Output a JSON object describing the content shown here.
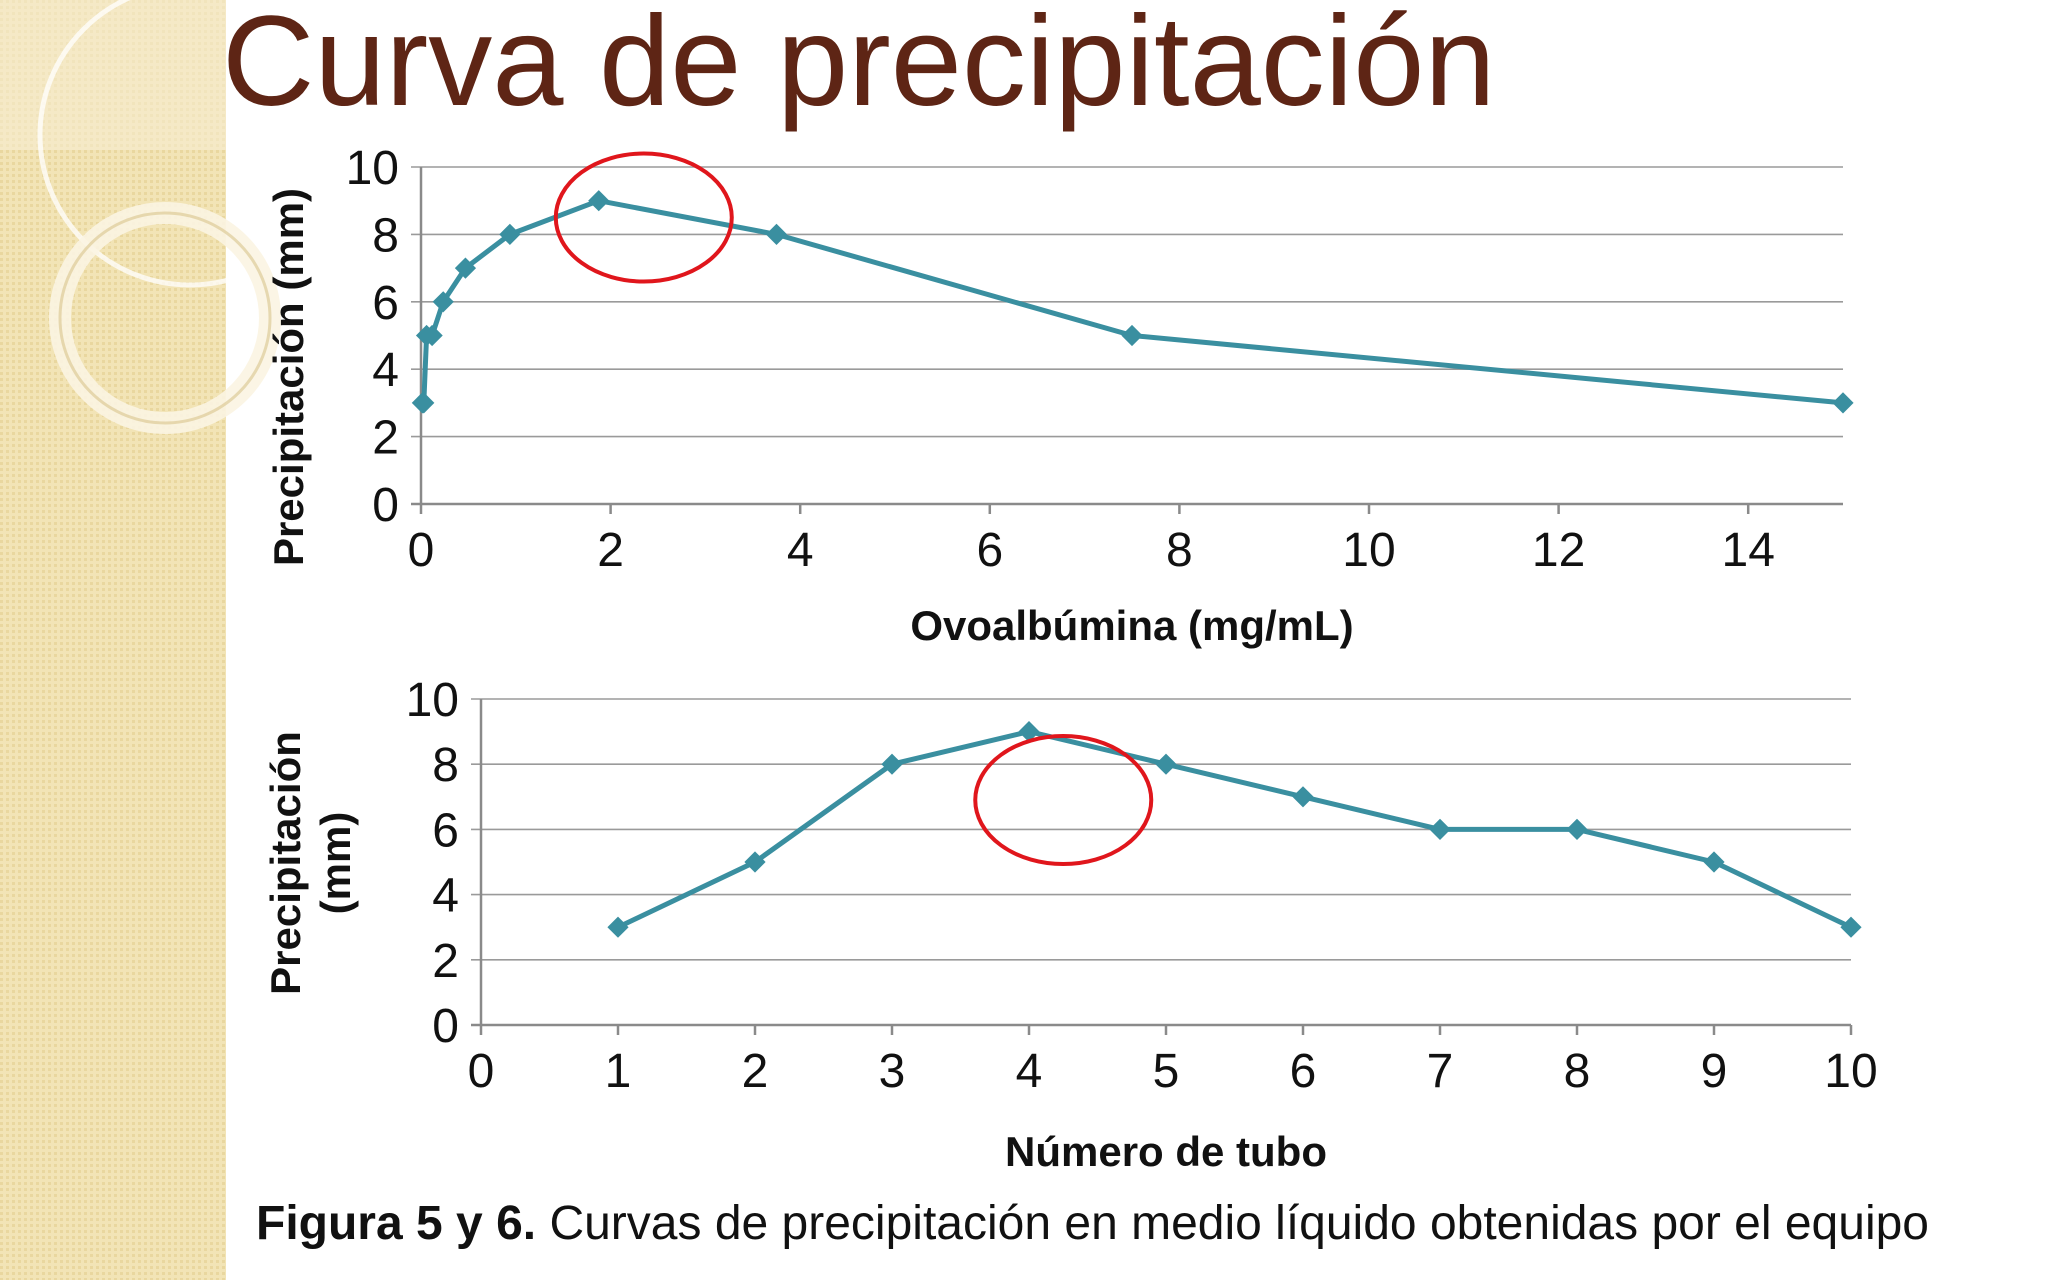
{
  "slide": {
    "title": "Curva de precipitación",
    "caption_bold": "Figura 5 y 6.",
    "caption_text": " Curvas de precipitación en medio líquido obtenidas por el equipo"
  },
  "colors": {
    "series": "#3a8fa0",
    "title": "#5e2515",
    "highlight": "#e0161c",
    "sidebar": "#f2e4b6"
  },
  "chart_data": [
    {
      "type": "line",
      "x": [
        0.0146,
        0.0293,
        0.0586,
        0.1172,
        0.2344,
        0.4688,
        0.9375,
        1.875,
        3.75,
        7.5,
        15
      ],
      "series": [
        {
          "values": [
            3,
            3,
            5,
            5,
            6,
            7,
            8,
            9,
            8,
            5,
            3
          ]
        }
      ],
      "xlabel": "Ovoalbúmina (mg/mL)",
      "ylabel": "Precipitación (mm)",
      "xlim": [
        0,
        15
      ],
      "ylim": [
        0,
        10
      ],
      "xticks": [
        "0",
        "2",
        "4",
        "6",
        "8",
        "10",
        "12",
        "14"
      ],
      "yticks": [
        "0",
        "2",
        "4",
        "6",
        "8",
        "10"
      ],
      "grid": true,
      "highlight_circle_center": {
        "x": 2.35,
        "y": 8.5
      }
    },
    {
      "type": "line",
      "x": [
        1,
        2,
        3,
        4,
        5,
        6,
        7,
        8,
        9,
        10
      ],
      "series": [
        {
          "values": [
            3,
            5,
            8,
            9,
            8,
            7,
            6,
            6,
            5,
            3
          ]
        }
      ],
      "xlabel": "Número de tubo",
      "ylabel_lines": [
        "Precipitación",
        "(mm)"
      ],
      "xlim": [
        0,
        10
      ],
      "ylim": [
        0,
        10
      ],
      "xticks": [
        "0",
        "1",
        "2",
        "3",
        "4",
        "5",
        "6",
        "7",
        "8",
        "9",
        "10"
      ],
      "yticks": [
        "0",
        "2",
        "4",
        "6",
        "8",
        "10"
      ],
      "grid": true,
      "highlight_circle_center": {
        "x": 4.25,
        "y": 6.9
      }
    }
  ]
}
